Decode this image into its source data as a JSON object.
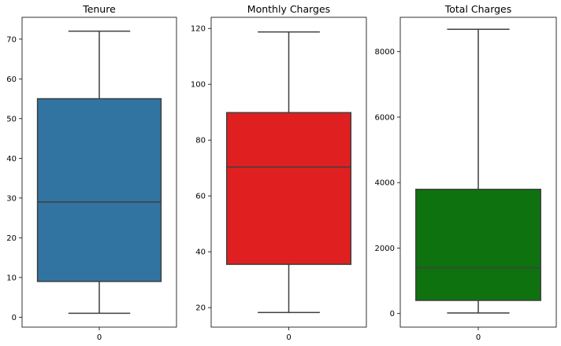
{
  "chart_data": [
    {
      "type": "box",
      "title": "Tenure",
      "categories": [
        "0"
      ],
      "color": "#3274a1",
      "ylim": [
        -2.5,
        75.5
      ],
      "yticks": [
        0,
        10,
        20,
        30,
        40,
        50,
        60,
        70
      ],
      "stats": {
        "min": 1,
        "q1": 9,
        "median": 29,
        "q3": 55,
        "max": 72
      },
      "xlabel": "",
      "ylabel": ""
    },
    {
      "type": "box",
      "title": "Monthly Charges",
      "categories": [
        "0"
      ],
      "color": "#e02020",
      "ylim": [
        13,
        124
      ],
      "yticks": [
        20,
        40,
        60,
        80,
        100,
        120
      ],
      "stats": {
        "min": 18.25,
        "q1": 35.5,
        "median": 70.35,
        "q3": 89.85,
        "max": 118.75
      },
      "xlabel": "",
      "ylabel": ""
    },
    {
      "type": "box",
      "title": "Total Charges",
      "categories": [
        "0"
      ],
      "color": "#0e720e",
      "ylim": [
        -415,
        9050
      ],
      "yticks": [
        0,
        2000,
        4000,
        6000,
        8000
      ],
      "stats": {
        "min": 18.8,
        "q1": 401.4,
        "median": 1397.5,
        "q3": 3794.7,
        "max": 8684.8
      },
      "xlabel": "",
      "ylabel": ""
    }
  ]
}
